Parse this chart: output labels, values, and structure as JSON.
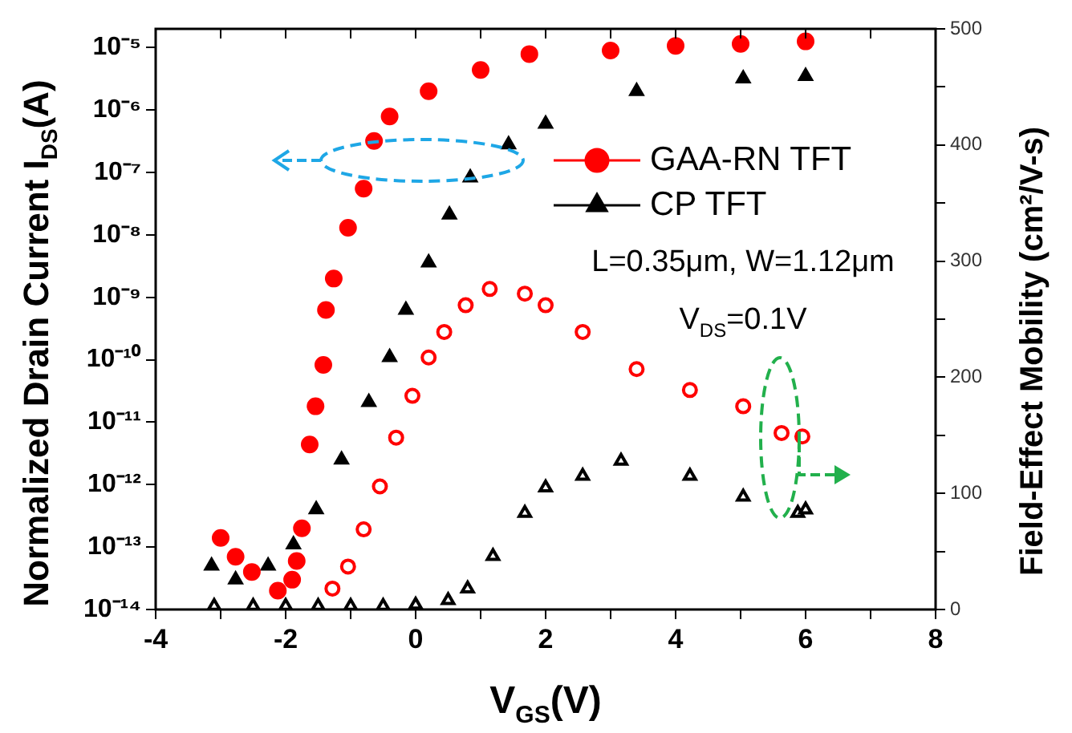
{
  "chart_data": {
    "type": "scatter",
    "xlabel": "V$_{GS}$(V)",
    "ylabel": "Normalized Drain Current I$_{DS}$(A)",
    "y2label": "Field-Effect Mobility (cm²/V-s)",
    "log": "y",
    "grid": false,
    "legend": "top right",
    "xlim": [
      -4,
      8
    ],
    "xticks": [
      -4,
      {
        "value": -3,
        "label": null
      },
      -2,
      {
        "value": -1,
        "label": null
      },
      0,
      {
        "value": 1,
        "label": null
      },
      2,
      {
        "value": 3,
        "label": null
      },
      4,
      {
        "value": 5,
        "label": null
      },
      6,
      {
        "value": 7,
        "label": null
      },
      8
    ],
    "ylim": [
      1e-14,
      2e-05
    ],
    "yticks": [
      {
        "value": 1e-14,
        "label": "10⁻¹⁴"
      },
      {
        "value": 1e-13,
        "label": "10⁻¹³"
      },
      {
        "value": 1e-12,
        "label": "10⁻¹²"
      },
      {
        "value": 1e-11,
        "label": "10⁻¹¹"
      },
      {
        "value": 1e-10,
        "label": "10⁻¹⁰"
      },
      {
        "value": 1e-09,
        "label": "10⁻⁹"
      },
      {
        "value": 1e-08,
        "label": "10⁻⁸"
      },
      {
        "value": 1e-07,
        "label": "10⁻⁷"
      },
      {
        "value": 1e-06,
        "label": "10⁻⁶"
      },
      {
        "value": 1e-05,
        "label": "10⁻⁵"
      }
    ],
    "y2lim": [
      0,
      500
    ],
    "y2ticks": [
      0,
      {
        "value": 50,
        "label": null
      },
      100,
      {
        "value": 150,
        "label": null
      },
      200,
      {
        "value": 250,
        "label": null
      },
      300,
      {
        "value": 350,
        "label": null
      },
      400,
      {
        "value": 450,
        "label": null
      },
      500
    ],
    "annotations": [
      "L=0.35μm, W=1.12μm",
      "V$_{DS}$=0.1V"
    ],
    "series": [
      {
        "name": "GAA-RN TFT",
        "color": "#ff0000",
        "marker": "circle",
        "x": [
          -3.0,
          -2.77,
          -2.52,
          -2.12,
          -1.9,
          -1.83,
          -1.75,
          -1.63,
          -1.54,
          -1.42,
          -1.38,
          -1.26,
          -1.04,
          -0.8,
          -0.64,
          -0.4,
          0.2,
          1.0,
          1.75,
          3.0,
          4.0,
          5.0,
          6.0
        ],
        "values": [
          1.4e-13,
          7e-14,
          4e-14,
          2e-14,
          3e-14,
          6e-14,
          2e-13,
          4.4e-12,
          1.8e-11,
          8.3e-11,
          6.3e-10,
          2e-09,
          1.3e-08,
          5.5e-08,
          3.2e-07,
          7.9e-07,
          2e-06,
          4.4e-06,
          7.9e-06,
          9e-06,
          1.07e-05,
          1.15e-05,
          1.26e-05
        ]
      },
      {
        "name": "CP TFT",
        "color": "#000000",
        "marker": "triangle",
        "x": [
          -3.14,
          -2.77,
          -2.27,
          -1.88,
          -1.53,
          -1.14,
          -0.72,
          -0.4,
          -0.15,
          0.2,
          0.52,
          0.84,
          1.43,
          2.0,
          3.4,
          5.04,
          6.0
        ],
        "values": [
          5e-14,
          3e-14,
          5e-14,
          1.1e-13,
          4e-13,
          2.5e-12,
          2.1e-11,
          1.1e-10,
          6.3e-10,
          3.6e-09,
          2.1e-08,
          8.3e-08,
          2.8e-07,
          6e-07,
          2e-06,
          3.2e-06,
          3.5e-06
        ]
      },
      {
        "color": "#ff0000",
        "marker": "circle",
        "axis": "y2",
        "x": [
          -1.28,
          -1.04,
          -0.8,
          -0.55,
          -0.3,
          -0.05,
          0.2,
          0.44,
          0.77,
          1.14,
          1.68,
          2.0,
          2.57,
          3.4,
          4.22,
          5.04,
          5.63,
          5.95
        ],
        "values": [
          18,
          37,
          69,
          106,
          148,
          184,
          217,
          239,
          262,
          276,
          272,
          262,
          239,
          207,
          189,
          175,
          152,
          149
        ]
      },
      {
        "color": "#000000",
        "marker": "triangle",
        "axis": "y2",
        "x": [
          -3.1,
          -2.5,
          -2.0,
          -1.5,
          -1.0,
          -0.5,
          0.0,
          0.5,
          0.8,
          1.19,
          1.68,
          2.0,
          2.57,
          3.16,
          4.22,
          5.04,
          5.88,
          6.0
        ],
        "values": [
          3,
          3,
          3,
          3,
          3,
          3,
          4,
          8,
          18,
          46,
          83,
          105,
          115,
          128,
          115,
          97,
          83,
          86
        ]
      }
    ]
  }
}
